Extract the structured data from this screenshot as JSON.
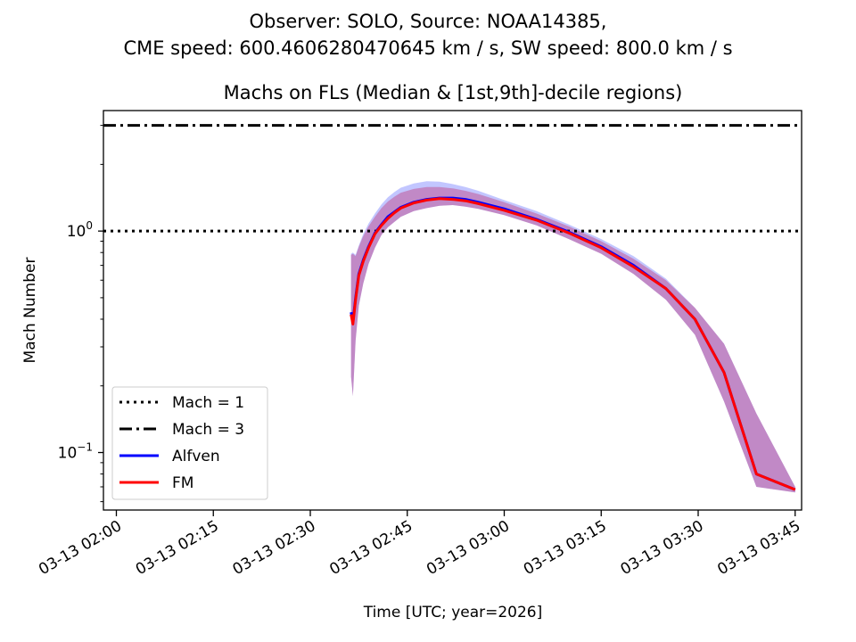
{
  "chart_data": {
    "type": "line",
    "suptitle": [
      "Observer: SOLO, Source: NOAA14385,",
      "CME speed: 600.4606280470645 km / s, SW speed: 800.0 km / s"
    ],
    "title": "Machs on FLs (Median & [1st,9th]-decile regions)",
    "xlabel": "Time [UTC; year=2026]",
    "ylabel": "Mach Number",
    "yscale": "log",
    "ylim": [
      0.055,
      3.5
    ],
    "xlim_minutes": [
      -2,
      106
    ],
    "x_unit": "minutes after 03-13 02:00",
    "x_ticks": [
      {
        "value": 0,
        "label": "03-13 02:00"
      },
      {
        "value": 15,
        "label": "03-13 02:15"
      },
      {
        "value": 30,
        "label": "03-13 02:30"
      },
      {
        "value": 45,
        "label": "03-13 02:45"
      },
      {
        "value": 60,
        "label": "03-13 03:00"
      },
      {
        "value": 75,
        "label": "03-13 03:15"
      },
      {
        "value": 90,
        "label": "03-13 03:30"
      },
      {
        "value": 105,
        "label": "03-13 03:45"
      }
    ],
    "y_ticks": [
      {
        "value": 1.0,
        "label": "10",
        "exp": "0"
      },
      {
        "value": 0.1,
        "label": "10",
        "exp": "−1"
      }
    ],
    "hlines": [
      {
        "name": "Mach = 1",
        "y": 1,
        "style": "dotted",
        "color": "#000000"
      },
      {
        "name": "Mach = 3",
        "y": 3,
        "style": "dashdot",
        "color": "#000000"
      }
    ],
    "series": [
      {
        "name": "Alfven",
        "color": "#0000ff",
        "band_color": "#9aa0ff",
        "x": [
          36.3,
          36.6,
          37.0,
          37.5,
          38.2,
          39.0,
          40.0,
          41.0,
          42.0,
          43.0,
          44.0,
          46.0,
          48.0,
          50.0,
          52.0,
          54.0,
          56.0,
          60.0,
          65.0,
          70.0,
          75.0,
          80.0,
          85.0,
          89.5,
          94.0,
          99.0,
          105.0
        ],
        "median": [
          0.43,
          0.39,
          0.5,
          0.64,
          0.74,
          0.85,
          0.98,
          1.07,
          1.16,
          1.22,
          1.28,
          1.35,
          1.39,
          1.41,
          1.41,
          1.39,
          1.35,
          1.26,
          1.13,
          0.99,
          0.85,
          0.7,
          0.55,
          0.4,
          0.23,
          0.08,
          0.068
        ],
        "low": [
          0.22,
          0.18,
          0.32,
          0.46,
          0.58,
          0.71,
          0.84,
          0.96,
          1.04,
          1.1,
          1.16,
          1.23,
          1.27,
          1.3,
          1.31,
          1.29,
          1.26,
          1.18,
          1.06,
          0.92,
          0.79,
          0.64,
          0.49,
          0.34,
          0.17,
          0.07,
          0.066
        ],
        "high": [
          0.79,
          0.8,
          0.78,
          0.86,
          0.97,
          1.08,
          1.2,
          1.32,
          1.42,
          1.5,
          1.57,
          1.64,
          1.68,
          1.67,
          1.63,
          1.58,
          1.52,
          1.38,
          1.23,
          1.07,
          0.92,
          0.77,
          0.61,
          0.45,
          0.31,
          0.15,
          0.07
        ]
      },
      {
        "name": "FM",
        "color": "#ff0000",
        "band_color": "#c060a0",
        "x": [
          36.3,
          36.6,
          37.0,
          37.5,
          38.2,
          39.0,
          40.0,
          41.0,
          42.0,
          43.0,
          44.0,
          46.0,
          48.0,
          50.0,
          52.0,
          54.0,
          56.0,
          60.0,
          65.0,
          70.0,
          75.0,
          80.0,
          85.0,
          89.5,
          94.0,
          99.0,
          105.0
        ],
        "median": [
          0.42,
          0.38,
          0.49,
          0.63,
          0.73,
          0.84,
          0.97,
          1.06,
          1.14,
          1.21,
          1.27,
          1.34,
          1.38,
          1.4,
          1.39,
          1.37,
          1.33,
          1.24,
          1.12,
          0.98,
          0.84,
          0.69,
          0.55,
          0.4,
          0.23,
          0.08,
          0.068
        ],
        "low": [
          0.22,
          0.18,
          0.32,
          0.46,
          0.58,
          0.71,
          0.84,
          0.96,
          1.04,
          1.1,
          1.16,
          1.23,
          1.27,
          1.3,
          1.31,
          1.29,
          1.26,
          1.18,
          1.06,
          0.92,
          0.79,
          0.64,
          0.49,
          0.34,
          0.17,
          0.07,
          0.066
        ],
        "high": [
          0.78,
          0.79,
          0.77,
          0.85,
          0.95,
          1.05,
          1.16,
          1.27,
          1.36,
          1.43,
          1.49,
          1.55,
          1.58,
          1.58,
          1.56,
          1.52,
          1.47,
          1.35,
          1.2,
          1.05,
          0.9,
          0.75,
          0.6,
          0.45,
          0.31,
          0.15,
          0.07
        ]
      }
    ],
    "legend": {
      "location": "lower-left",
      "entries": [
        "Mach = 1",
        "Mach = 3",
        "Alfven",
        "FM"
      ]
    }
  }
}
